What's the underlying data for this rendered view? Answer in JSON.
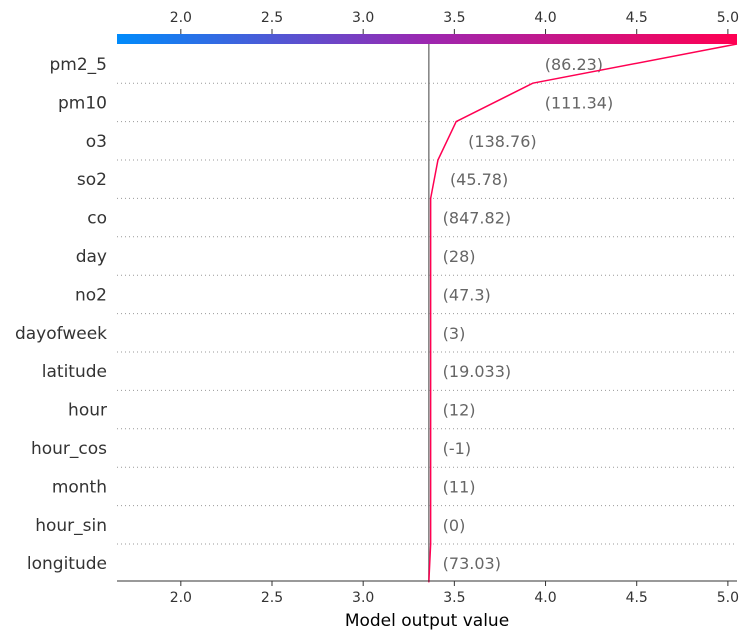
{
  "chart_data": {
    "type": "line",
    "subtype": "shap-decision-plot",
    "xlabel": "Model output value",
    "xlim": [
      1.65,
      5.05
    ],
    "xticks": [
      2.0,
      2.5,
      3.0,
      3.5,
      4.0,
      4.5,
      5.0
    ],
    "tick_labels": [
      "2.0",
      "2.5",
      "3.0",
      "3.5",
      "4.0",
      "4.5",
      "5.0"
    ],
    "base_value": 3.36,
    "final_value": 5.05,
    "colorbar": {
      "from": "#008bfb",
      "mid": "#9c27b0",
      "to": "#ff0052"
    },
    "line_color": "#ff0052",
    "features": [
      {
        "name": "pm2_5",
        "value_label": "(86.23)",
        "cumulative": 5.05
      },
      {
        "name": "pm10",
        "value_label": "(111.34)",
        "cumulative": 3.93
      },
      {
        "name": "o3",
        "value_label": "(138.76)",
        "cumulative": 3.51
      },
      {
        "name": "so2",
        "value_label": "(45.78)",
        "cumulative": 3.41
      },
      {
        "name": "co",
        "value_label": "(847.82)",
        "cumulative": 3.37
      },
      {
        "name": "day",
        "value_label": "(28)",
        "cumulative": 3.37
      },
      {
        "name": "no2",
        "value_label": "(47.3)",
        "cumulative": 3.37
      },
      {
        "name": "dayofweek",
        "value_label": "(3)",
        "cumulative": 3.37
      },
      {
        "name": "latitude",
        "value_label": "(19.033)",
        "cumulative": 3.37
      },
      {
        "name": "hour",
        "value_label": "(12)",
        "cumulative": 3.37
      },
      {
        "name": "hour_cos",
        "value_label": "(-1)",
        "cumulative": 3.37
      },
      {
        "name": "month",
        "value_label": "(11)",
        "cumulative": 3.37
      },
      {
        "name": "hour_sin",
        "value_label": "(0)",
        "cumulative": 3.37
      },
      {
        "name": "longitude",
        "value_label": "(73.03)",
        "cumulative": 3.37
      }
    ]
  }
}
